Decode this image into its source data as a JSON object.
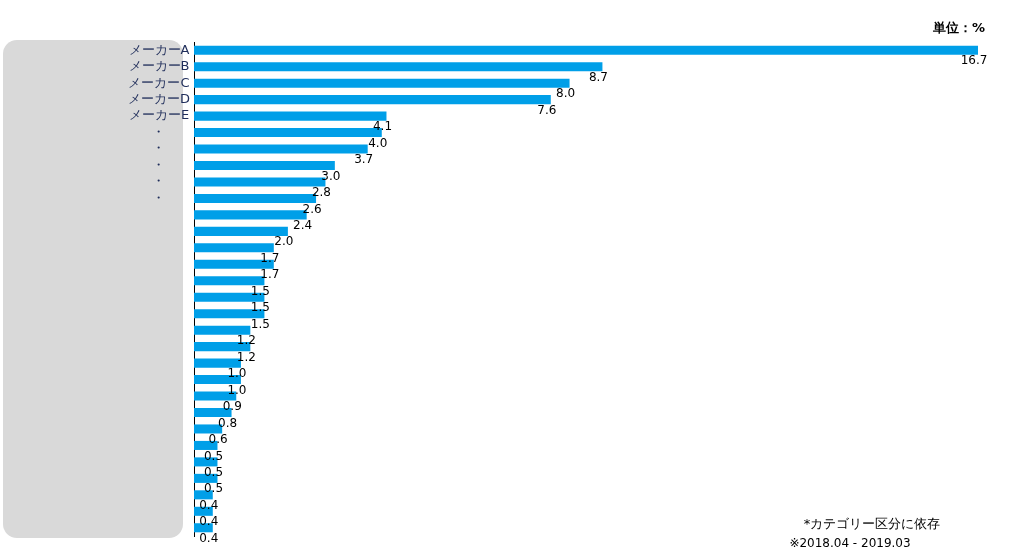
{
  "chart_data": {
    "type": "bar",
    "orientation": "horizontal",
    "tick_labels": "y",
    "color": "#009fe8",
    "value_labels": [
      "16.7",
      "8.7",
      "8.0",
      "7.6",
      "4.1",
      "4.0",
      "3.7",
      "3.0",
      "2.8",
      "2.6",
      "2.4",
      "2.0",
      "1.7",
      "1.7",
      "1.5",
      "1.5",
      "1.5",
      "1.2",
      "1.2",
      "1.0",
      "1.0",
      "0.9",
      "0.8",
      "0.6",
      "0.5",
      "0.5",
      "0.5",
      "0.4",
      "0.4",
      "0.4"
    ],
    "categories": [
      "メーカーA",
      "メーカーB",
      "メーカーC",
      "メーカーD",
      "メーカーE",
      "・",
      "・",
      "・",
      "・",
      "・",
      null,
      null,
      null,
      null,
      null,
      null,
      null,
      null,
      null,
      null,
      null,
      null,
      null,
      null,
      null,
      null,
      null,
      null,
      null,
      null
    ],
    "values": [
      16.7,
      8.7,
      8.0,
      7.6,
      4.1,
      4.0,
      3.7,
      3.0,
      2.8,
      2.6,
      2.4,
      2.0,
      1.7,
      1.7,
      1.5,
      1.5,
      1.5,
      1.2,
      1.2,
      1.0,
      1.0,
      0.9,
      0.8,
      0.6,
      0.5,
      0.5,
      0.5,
      0.4,
      0.4,
      0.4
    ],
    "annotations": [
      "単位：%",
      "*カテゴリー区分に依存",
      "※2018.04 - 2019.03"
    ]
  }
}
